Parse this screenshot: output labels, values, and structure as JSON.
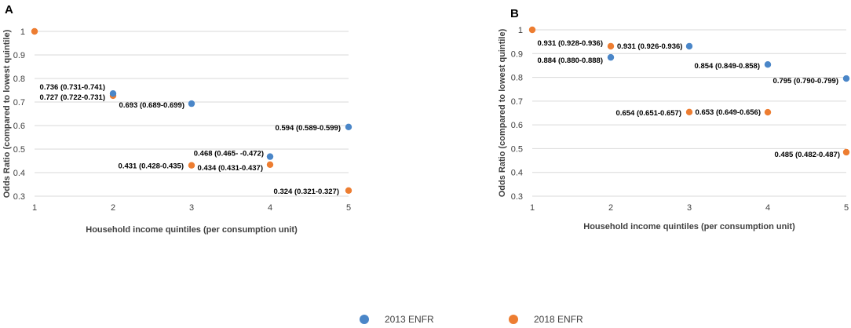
{
  "chart_data": [
    {
      "panel": "A",
      "type": "scatter",
      "xlabel": "Household income quintiles (per consumption unit)",
      "ylabel": "Odds Ratio (compared to lowest quintile)",
      "xlim": [
        1,
        5
      ],
      "ylim": [
        0.3,
        1
      ],
      "xticks": [
        "1",
        "2",
        "3",
        "4",
        "5"
      ],
      "yticks": [
        "0.3",
        "0.4",
        "0.5",
        "0.6",
        "0.7",
        "0.8",
        "0.9",
        "1"
      ],
      "grid": true,
      "series": [
        {
          "name": "2013 ENFR",
          "color": "#4a86c8",
          "points": [
            {
              "x": 2,
              "y": 0.736,
              "label": "0.736 (0.731-0.741)"
            },
            {
              "x": 3,
              "y": 0.693,
              "label": "0.693 (0.689-0.699)"
            },
            {
              "x": 4,
              "y": 0.468,
              "label": "0.468 (0.465- -0.472)"
            },
            {
              "x": 5,
              "y": 0.594,
              "label": "0.594 (0.589-0.599)"
            }
          ]
        },
        {
          "name": "2018 ENFR",
          "color": "#ed7d31",
          "points": [
            {
              "x": 1,
              "y": 1.0,
              "label": ""
            },
            {
              "x": 2,
              "y": 0.727,
              "label": "0.727 (0.722-0.731)"
            },
            {
              "x": 3,
              "y": 0.431,
              "label": "0.431 (0.428-0.435)"
            },
            {
              "x": 4,
              "y": 0.434,
              "label": "0.434 (0.431-0.437)"
            },
            {
              "x": 5,
              "y": 0.324,
              "label": "0.324 (0.321-0.327)"
            }
          ]
        }
      ]
    },
    {
      "panel": "B",
      "type": "scatter",
      "xlabel": "Household income quintiles (per consumption unit)",
      "ylabel": "Odds Ratio (compared to lowest quintile)",
      "xlim": [
        1,
        5
      ],
      "ylim": [
        0.3,
        1
      ],
      "xticks": [
        "1",
        "2",
        "3",
        "4",
        "5"
      ],
      "yticks": [
        "0.3",
        "0.4",
        "0.5",
        "0.6",
        "0.7",
        "0.8",
        "0.9",
        "1"
      ],
      "grid": true,
      "series": [
        {
          "name": "2013 ENFR",
          "color": "#4a86c8",
          "points": [
            {
              "x": 2,
              "y": 0.884,
              "label": "0.884 (0.880-0.888)"
            },
            {
              "x": 3,
              "y": 0.931,
              "label": "0.931 (0.926-0.936)"
            },
            {
              "x": 4,
              "y": 0.854,
              "label": "0.854 (0.849-0.858)"
            },
            {
              "x": 5,
              "y": 0.795,
              "label": "0.795 (0.790-0.799)"
            }
          ]
        },
        {
          "name": "2018 ENFR",
          "color": "#ed7d31",
          "points": [
            {
              "x": 1,
              "y": 1.0,
              "label": ""
            },
            {
              "x": 2,
              "y": 0.931,
              "label": "0.931 (0.928-0.936)"
            },
            {
              "x": 3,
              "y": 0.654,
              "label": "0.654 (0.651-0.657)"
            },
            {
              "x": 4,
              "y": 0.653,
              "label": "0.653 (0.649-0.656)"
            },
            {
              "x": 5,
              "y": 0.485,
              "label": "0.485 (0.482-0.487)"
            }
          ]
        }
      ]
    }
  ],
  "legend": {
    "position": "bottom",
    "items": [
      {
        "name": "2013 ENFR",
        "color": "#4a86c8"
      },
      {
        "name": "2018 ENFR",
        "color": "#ed7d31"
      }
    ]
  }
}
